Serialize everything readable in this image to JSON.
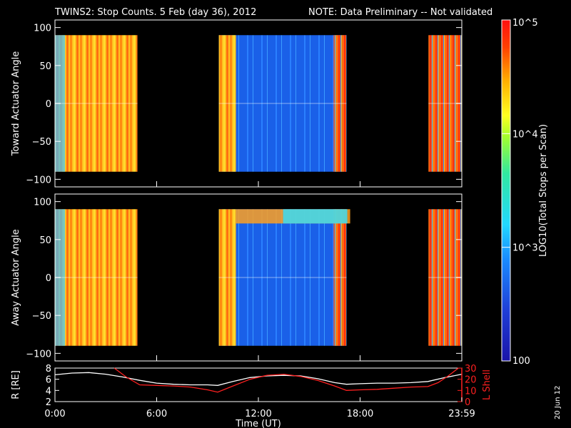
{
  "title": {
    "text": "TWINS2: Stop Counts.  5 Feb (day  36), 2012",
    "note": "NOTE: Data Preliminary -- Not validated",
    "note_color": "#ff2020"
  },
  "side_date": "20 Jun 12",
  "colorbar": {
    "label": "LOG10(Total Stops per Scan)",
    "ticks": [
      {
        "value": 100,
        "label": "100"
      },
      {
        "value": 1000,
        "label": "10^3"
      },
      {
        "value": 10000,
        "label": "10^4"
      },
      {
        "value": 100000,
        "label": "10^5"
      }
    ],
    "range": [
      100,
      100000
    ],
    "scale": "log"
  },
  "chart_data": [
    {
      "type": "heatmap",
      "ylabel": "Toward Actuator Angle",
      "xlim": [
        "0:00",
        "24:00"
      ],
      "ylim": [
        -110,
        110
      ],
      "yticks": [
        -100,
        -50,
        0,
        50,
        100
      ],
      "data_angle_range": [
        -90,
        90
      ],
      "segments": [
        {
          "start": "0:00",
          "end": "4:52",
          "typical_counts": 20000
        },
        {
          "start": "9:40",
          "end": "17:12",
          "typical_counts": 1000
        },
        {
          "start": "22:02",
          "end": "23:59",
          "typical_counts": 50000
        }
      ]
    },
    {
      "type": "heatmap",
      "ylabel": "Away Actuator Angle",
      "xlim": [
        "0:00",
        "24:00"
      ],
      "ylim": [
        -110,
        110
      ],
      "yticks": [
        -100,
        -50,
        0,
        50,
        100
      ],
      "data_angle_range": [
        -90,
        90
      ],
      "segments": [
        {
          "start": "0:00",
          "end": "4:52",
          "typical_counts": 20000
        },
        {
          "start": "9:40",
          "end": "17:12",
          "typical_counts": 1000
        },
        {
          "start": "22:02",
          "end": "23:59",
          "typical_counts": 50000
        }
      ]
    },
    {
      "type": "line",
      "xlabel": "Time (UT)",
      "xticks": [
        "0:00",
        "6:00",
        "12:00",
        "18:00",
        "23:59"
      ],
      "xlim": [
        0,
        24
      ],
      "ylabel": "R [RE]",
      "ylim": [
        2,
        8
      ],
      "yticks": [
        2,
        4,
        6,
        8
      ],
      "y2label": "L Shell",
      "y2lim": [
        0,
        30
      ],
      "y2ticks": [
        0,
        10,
        20,
        30
      ],
      "y2_color": "#ff2020",
      "series": [
        {
          "name": "R",
          "axis": "left",
          "color": "#ffffff",
          "x": [
            0,
            1,
            2,
            3,
            4,
            5,
            6,
            7,
            8,
            9,
            9.6,
            10.5,
            11.5,
            12.5,
            13.5,
            14.5,
            15.5,
            16.5,
            17.2,
            18,
            19,
            20,
            21,
            22,
            23,
            24
          ],
          "y": [
            6.8,
            7.1,
            7.2,
            6.9,
            6.4,
            5.8,
            5.3,
            5.1,
            5.0,
            5.0,
            4.9,
            5.6,
            6.3,
            6.6,
            6.7,
            6.6,
            6.1,
            5.4,
            5.1,
            5.2,
            5.3,
            5.3,
            5.4,
            5.6,
            6.3,
            6.9
          ]
        },
        {
          "name": "L Shell",
          "axis": "right",
          "color": "#ff2020",
          "x": [
            3.5,
            4.2,
            5,
            6,
            7,
            8,
            9,
            9.6,
            10.5,
            11.5,
            12.5,
            13.5,
            14.5,
            15.5,
            16.5,
            17.2,
            18,
            19,
            20,
            21,
            22,
            22.6,
            23.2,
            23.8
          ],
          "y": [
            30,
            22,
            15,
            14.5,
            14,
            13,
            10.5,
            8.5,
            14,
            20,
            23.5,
            24.5,
            22.5,
            19,
            14,
            10,
            10.5,
            11,
            12,
            13,
            13.5,
            17,
            23,
            30
          ]
        }
      ]
    }
  ]
}
